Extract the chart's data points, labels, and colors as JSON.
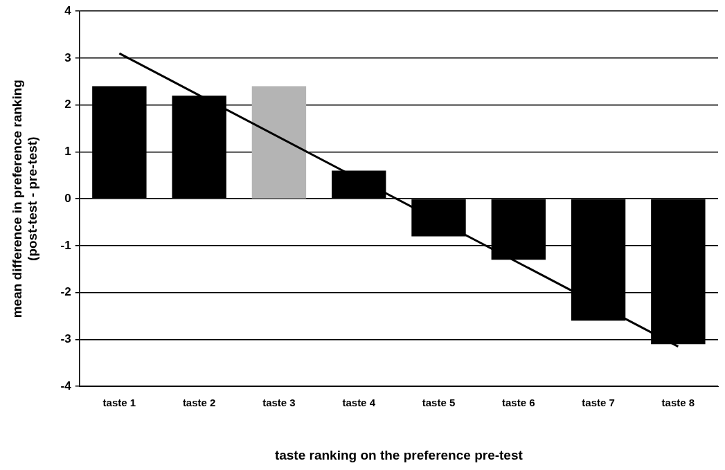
{
  "chart_data": {
    "type": "bar",
    "xlabel": "taste ranking on the preference pre-test",
    "ylabel": "mean difference in preference ranking\n(post-test - pre-test)",
    "categories": [
      "taste 1",
      "taste 2",
      "taste 3",
      "taste 4",
      "taste 5",
      "taste 6",
      "taste 7",
      "taste 8"
    ],
    "series": [
      {
        "colors": [
          "#000000",
          "#000000",
          "#b4b4b4",
          "#000000",
          "#000000",
          "#000000",
          "#000000",
          "#000000"
        ],
        "values": [
          2.4,
          2.2,
          2.4,
          0.6,
          -0.8,
          -1.3,
          -2.6,
          -3.1
        ]
      },
      {
        "type": "line",
        "color": "#000000",
        "x": [
          "taste 1",
          "taste 8"
        ],
        "values": [
          3.1,
          -3.15
        ]
      }
    ],
    "ylim": [
      -4,
      4
    ],
    "yticks": [
      -4,
      -3,
      -2,
      -1,
      0,
      1,
      2,
      3,
      4
    ],
    "grid": "y",
    "legend": false,
    "marker": "none"
  }
}
